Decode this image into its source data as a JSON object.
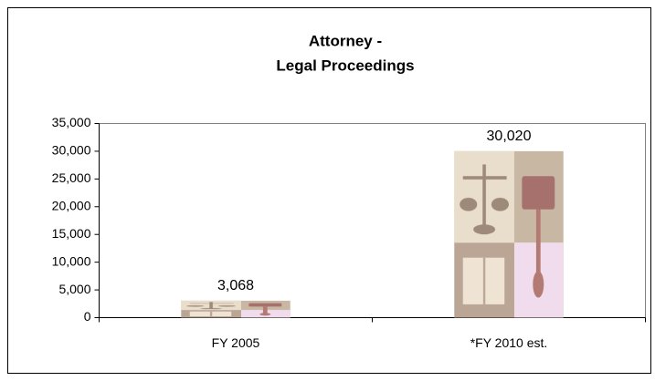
{
  "chart_data": {
    "type": "bar",
    "title": [
      "Attorney -",
      "Legal Proceedings"
    ],
    "categories": [
      "FY 2005",
      "*FY 2010 est."
    ],
    "values": [
      3068,
      30020
    ],
    "value_labels": [
      "3,068",
      "30,020"
    ],
    "ylim": [
      0,
      35000
    ],
    "yticks": [
      0,
      {
        "value": 5000,
        "label": "5,000"
      },
      {
        "value": 10000,
        "label": "10,000"
      },
      {
        "value": 15000,
        "label": "15,000"
      },
      {
        "value": 20000,
        "label": "20,000"
      },
      {
        "value": 25000,
        "label": "25,000"
      },
      {
        "value": 30000,
        "label": "30,000"
      },
      {
        "value": 35000,
        "label": "35,000"
      }
    ],
    "grid": false
  }
}
